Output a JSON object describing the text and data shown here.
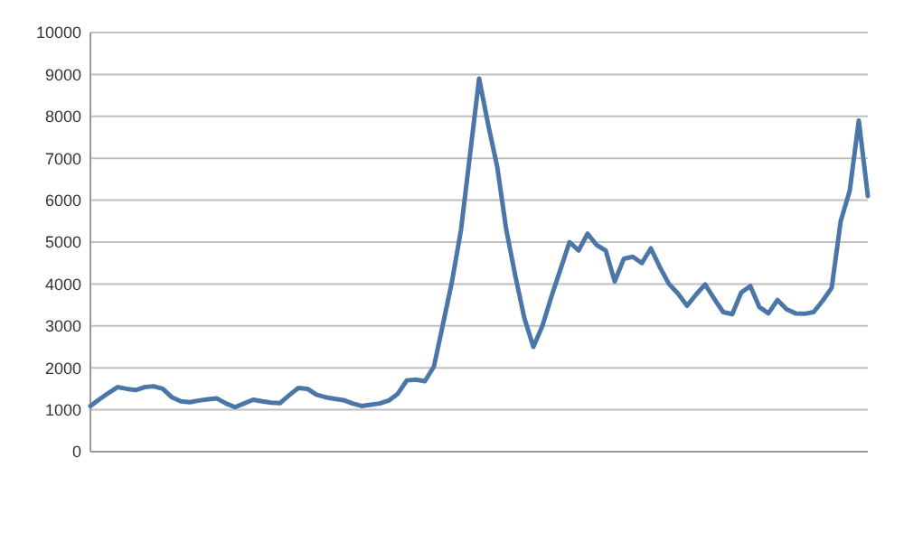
{
  "chart_data": {
    "type": "line",
    "color": "#4a76a8",
    "grid": "y",
    "tick_labels": "y",
    "ylim": [
      0,
      10000
    ],
    "yticks": [
      0,
      1000,
      2000,
      3000,
      4000,
      5000,
      6000,
      7000,
      8000,
      9000,
      10000
    ],
    "categories": [
      null,
      null,
      null,
      null,
      null,
      null,
      null,
      null,
      null,
      null,
      null,
      null,
      null,
      null,
      null,
      null,
      null,
      null,
      null,
      null,
      null,
      null,
      null,
      null,
      null,
      null,
      null,
      null,
      null,
      null,
      null,
      null,
      null,
      null,
      null,
      null,
      null,
      null,
      null,
      null,
      null,
      null,
      null,
      null,
      null,
      null,
      null,
      null,
      null,
      null,
      null,
      null,
      null,
      null,
      null,
      null,
      null,
      null,
      null,
      null,
      null,
      null,
      null,
      null,
      null,
      null,
      null,
      null,
      null,
      null,
      null,
      null,
      null,
      null,
      null,
      null,
      null,
      null,
      null,
      null,
      null,
      null,
      null,
      null,
      null,
      null,
      null
    ],
    "values": [
      1090,
      1250,
      1400,
      1540,
      1500,
      1470,
      1540,
      1560,
      1500,
      1300,
      1200,
      1180,
      1220,
      1250,
      1270,
      1150,
      1060,
      1150,
      1240,
      1200,
      1170,
      1160,
      1350,
      1520,
      1500,
      1360,
      1300,
      1260,
      1230,
      1150,
      1090,
      1120,
      1150,
      1220,
      1380,
      1700,
      1720,
      1680,
      2030,
      3040,
      4060,
      5300,
      7100,
      8900,
      7800,
      6800,
      5300,
      4200,
      3190,
      2500,
      3000,
      3700,
      4350,
      5000,
      4800,
      5200,
      4930,
      4800,
      4060,
      4600,
      4650,
      4500,
      4850,
      4400,
      4000,
      3770,
      3480,
      3750,
      3990,
      3650,
      3330,
      3280,
      3800,
      3950,
      3450,
      3300,
      3620,
      3400,
      3300,
      3290,
      3330,
      3600,
      3910,
      5500,
      6230,
      7900,
      6100
    ]
  }
}
